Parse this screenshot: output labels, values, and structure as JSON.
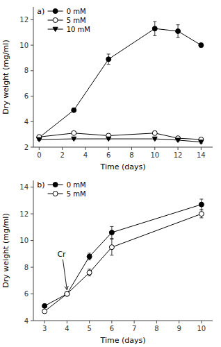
{
  "chart_data": [
    {
      "type": "line",
      "title": "a)",
      "x": [
        0,
        3,
        6,
        10,
        12,
        14
      ],
      "series": [
        {
          "name": "0 mM",
          "marker": "filled_circle",
          "color": "#000000",
          "values": [
            2.75,
            4.9,
            8.9,
            11.3,
            11.1,
            10.0
          ],
          "yerr": [
            0.1,
            0.15,
            0.4,
            0.55,
            0.5,
            0.15
          ]
        },
        {
          "name": "5 mM",
          "marker": "open_circle",
          "color": "#000000",
          "values": [
            2.8,
            3.1,
            2.9,
            3.1,
            2.7,
            2.6
          ],
          "yerr": [
            0.1,
            0.1,
            0.1,
            0.15,
            0.1,
            0.1
          ]
        },
        {
          "name": "10 mM",
          "marker": "filled_triangle_down",
          "color": "#000000",
          "values": [
            2.6,
            2.65,
            2.65,
            2.65,
            2.55,
            2.4
          ],
          "yerr": [
            0.08,
            0.08,
            0.08,
            0.08,
            0.08,
            0.08
          ]
        }
      ],
      "xlim": [
        -0.5,
        15
      ],
      "ylim": [
        2,
        13
      ],
      "xticks": [
        0,
        2,
        4,
        6,
        8,
        10,
        12,
        14
      ],
      "yticks": [
        2,
        4,
        6,
        8,
        10,
        12
      ],
      "xlabel": "Time (days)",
      "ylabel": "Dry weight (mg/ml)",
      "legend": "upper left",
      "grid": false
    },
    {
      "type": "line",
      "title": "b)",
      "x": [
        3,
        4,
        5,
        6,
        10
      ],
      "series": [
        {
          "name": "0 mM",
          "marker": "filled_circle",
          "color": "#000000",
          "values": [
            5.1,
            6.0,
            8.8,
            10.6,
            12.7
          ],
          "yerr": [
            0.1,
            0.15,
            0.25,
            0.45,
            0.4
          ]
        },
        {
          "name": "5 mM",
          "marker": "open_circle",
          "color": "#000000",
          "values": [
            4.7,
            6.0,
            7.6,
            9.5,
            12.0
          ],
          "yerr": [
            0.1,
            0.15,
            0.25,
            0.6,
            0.3
          ]
        }
      ],
      "annotations": [
        {
          "text": "Cr",
          "x": 4.0,
          "y": 6.2
        }
      ],
      "xlim": [
        2.5,
        10.5
      ],
      "ylim": [
        4,
        14.5
      ],
      "xticks": [
        3,
        4,
        5,
        6,
        7,
        8,
        9,
        10
      ],
      "yticks": [
        4,
        6,
        8,
        10,
        12,
        14
      ],
      "xlabel": "Time (days)",
      "ylabel": "Dry weight (mg/ml)",
      "legend": "upper left",
      "grid": false
    }
  ]
}
